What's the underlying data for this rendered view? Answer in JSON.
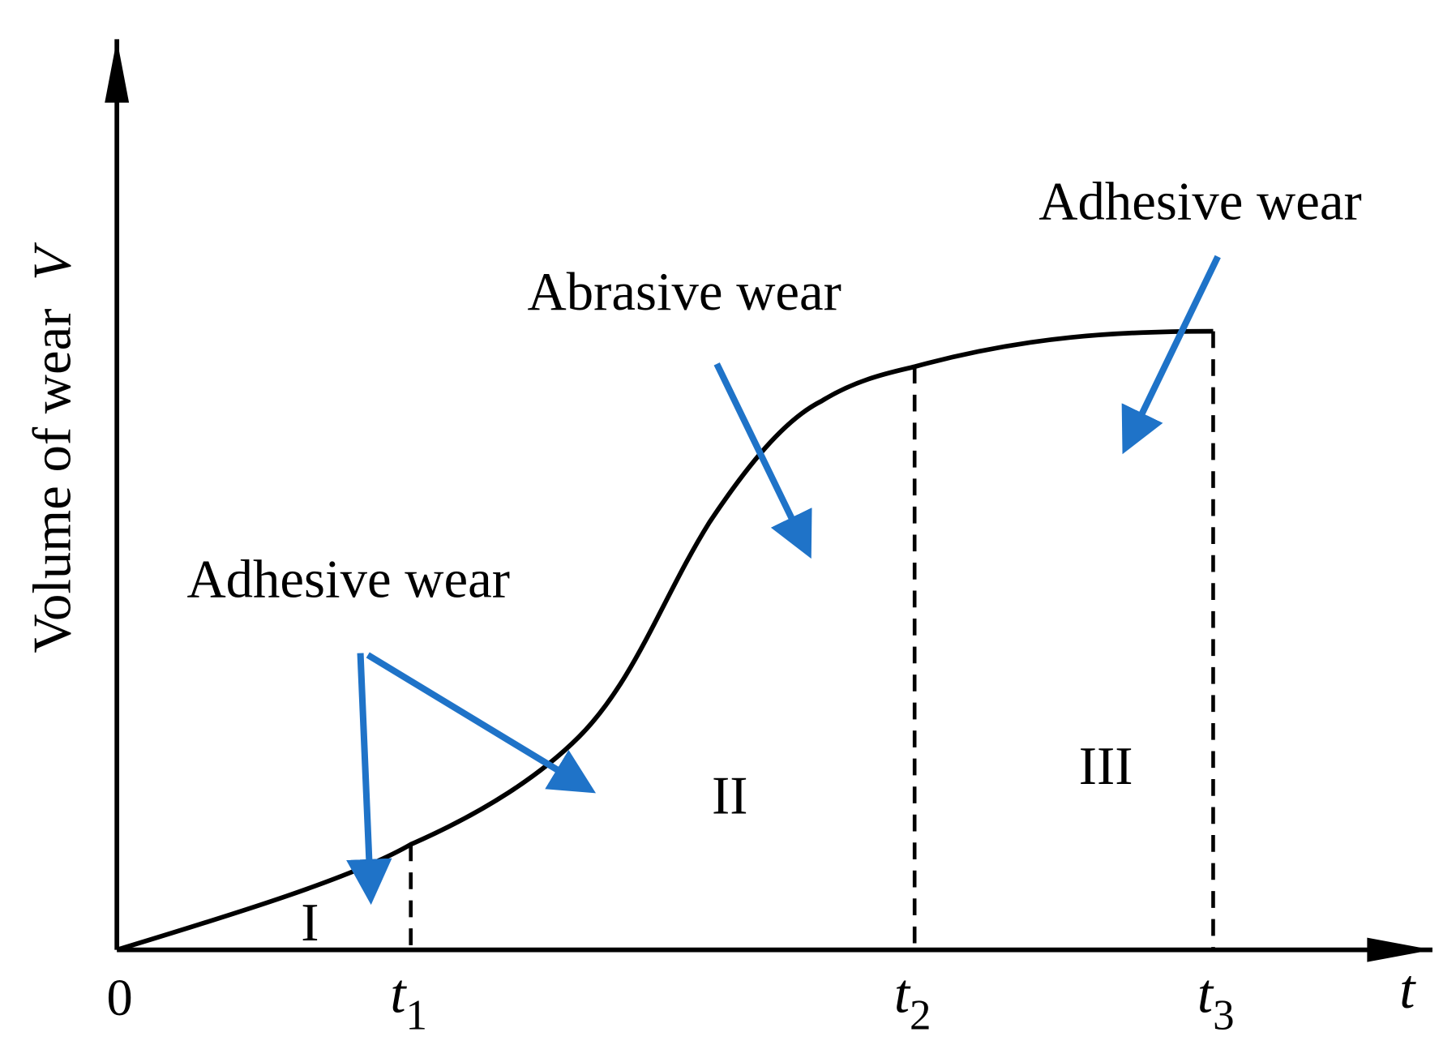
{
  "axes": {
    "y_label": "Volume of wear",
    "y_symbol": "V",
    "x_symbol": "t",
    "origin": "0"
  },
  "time_marks": [
    {
      "symbol": "t",
      "subscript": "1"
    },
    {
      "symbol": "t",
      "subscript": "2"
    },
    {
      "symbol": "t",
      "subscript": "3"
    }
  ],
  "stages": [
    "I",
    "II",
    "III"
  ],
  "annotations": [
    "Adhesive wear",
    "Abrasive wear",
    "Adhesive wear"
  ]
}
